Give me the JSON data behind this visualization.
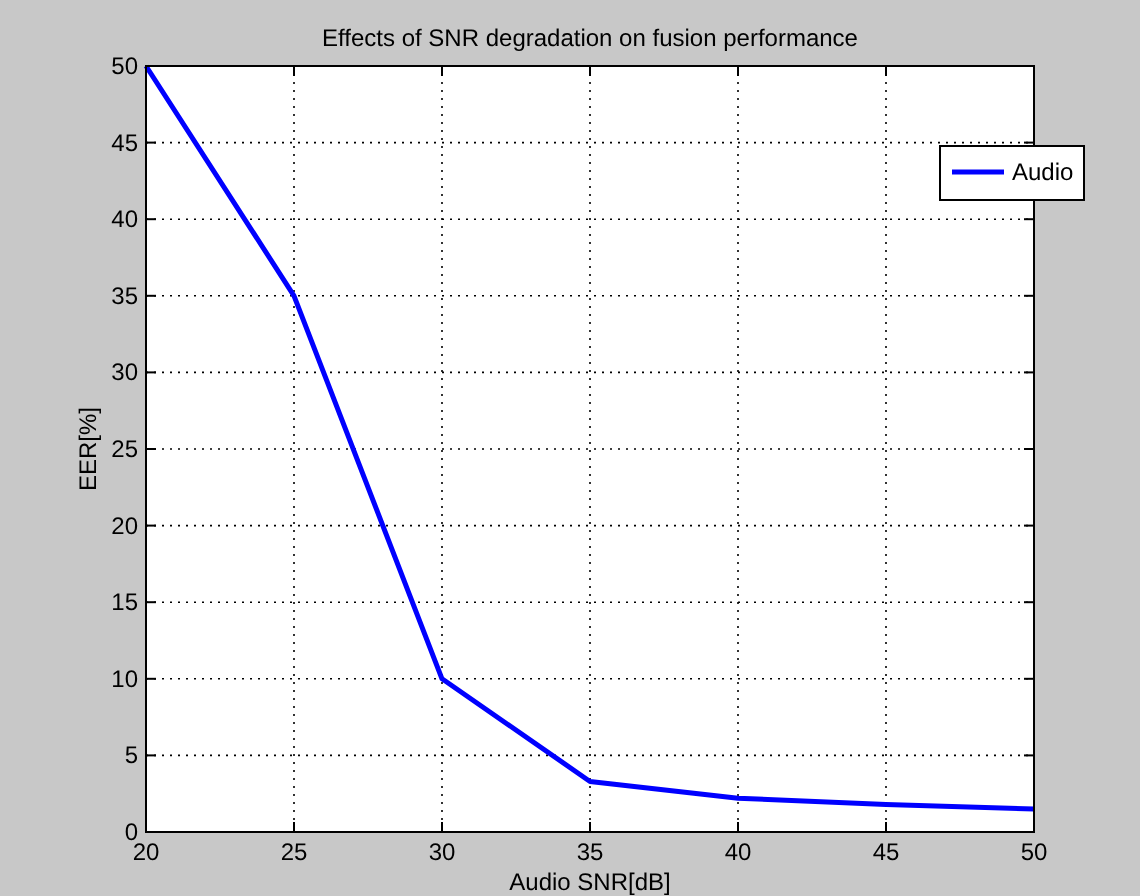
{
  "chart_data": {
    "type": "line",
    "title": "Effects of SNR degradation on fusion performance",
    "xlabel": "Audio SNR[dB]",
    "ylabel": "EER[%]",
    "x": [
      20,
      25,
      30,
      35,
      40,
      45,
      50
    ],
    "series": [
      {
        "name": "Audio",
        "color": "#0000ff",
        "values": [
          50,
          35,
          10,
          3.3,
          2.2,
          1.8,
          1.5
        ]
      }
    ],
    "xlim": [
      20,
      50
    ],
    "xticks": [
      20,
      25,
      30,
      35,
      40,
      45,
      50
    ],
    "ylim": [
      0,
      50
    ],
    "yticks": [
      0,
      5,
      10,
      15,
      20,
      25,
      30,
      35,
      40,
      45,
      50
    ],
    "grid": true,
    "legend": "top right",
    "marker": "none",
    "line_style": "solid"
  }
}
